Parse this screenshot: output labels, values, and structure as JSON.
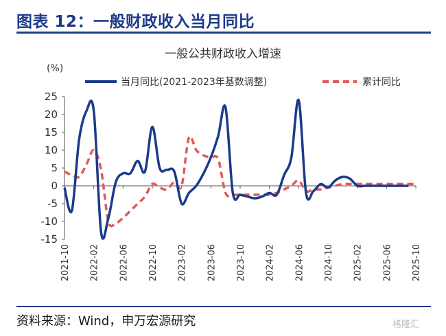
{
  "header": {
    "title": "图表 12：一般财政收入当月同比"
  },
  "footer": {
    "source": "资料来源：Wind，申万宏源研究",
    "watermark": "格隆汇"
  },
  "colors": {
    "series_monthly": "#1b3a8a",
    "series_cumulative": "#e05a5a",
    "header": "#1b3a8a"
  },
  "chart_data": {
    "type": "line",
    "title": "一般公共财政收入增速",
    "unit_label": "(%)",
    "ylim": [
      -15,
      25
    ],
    "yticks": [
      -15,
      -10,
      -5,
      0,
      5,
      10,
      15,
      20,
      25
    ],
    "xticks": [
      "2021-10",
      "2022-02",
      "2022-06",
      "2022-10",
      "2023-02",
      "2023-06",
      "2023-10",
      "2024-02",
      "2024-06",
      "2024-10",
      "2025-02",
      "2025-06",
      "2025-10"
    ],
    "legend_position": "top",
    "x": [
      "2021-10",
      "2021-11",
      "2021-12",
      "2022-01",
      "2022-02",
      "2022-03",
      "2022-04",
      "2022-05",
      "2022-06",
      "2022-07",
      "2022-08",
      "2022-09",
      "2022-10",
      "2022-11",
      "2022-12",
      "2023-01",
      "2023-02",
      "2023-03",
      "2023-04",
      "2023-05",
      "2023-06",
      "2023-07",
      "2023-08",
      "2023-09",
      "2023-10",
      "2023-11",
      "2023-12",
      "2024-01",
      "2024-02",
      "2024-03",
      "2024-04",
      "2024-05",
      "2024-06",
      "2024-07",
      "2024-08",
      "2024-09",
      "2024-10",
      "2024-11",
      "2024-12",
      "2025-01",
      "2025-02",
      "2025-03",
      "2025-04",
      "2025-05",
      "2025-06",
      "2025-07",
      "2025-08",
      "2025-09",
      "2025-10"
    ],
    "series": [
      {
        "name": "当月同比(2021-2023年基数调整)",
        "style": "solid",
        "values": [
          -0.5,
          -7,
          13,
          21,
          21,
          -13,
          -9,
          1,
          3.5,
          3.5,
          7,
          4,
          16.5,
          5,
          4.5,
          4,
          -5,
          -2,
          0,
          3.5,
          8,
          14,
          22,
          -2,
          -2.5,
          -3,
          -3.5,
          -3,
          -2,
          -2.5,
          3,
          8,
          24,
          -2,
          -1.5,
          0.5,
          -0.5,
          1.5,
          2.5,
          2,
          0,
          0,
          0,
          0,
          0,
          0,
          0,
          0,
          0
        ]
      },
      {
        "name": "累计同比",
        "style": "dashed",
        "values": [
          4,
          3,
          2.5,
          6,
          10,
          4.5,
          -10,
          -10.5,
          -9,
          -7,
          -5,
          -3,
          0.5,
          -0.5,
          -1,
          1,
          0,
          13.5,
          10,
          8.5,
          8,
          7.5,
          -2,
          -2.5,
          -2.5,
          -2.5,
          -2.5,
          -2.5,
          -2.5,
          -2,
          -1,
          0,
          1.5,
          -1.5,
          -1,
          -1,
          -0.5,
          0,
          0.5,
          0.5,
          0.5,
          0.5,
          0.5,
          0.5,
          0.5,
          0.5,
          0.5,
          0.5,
          0.5
        ]
      }
    ]
  }
}
